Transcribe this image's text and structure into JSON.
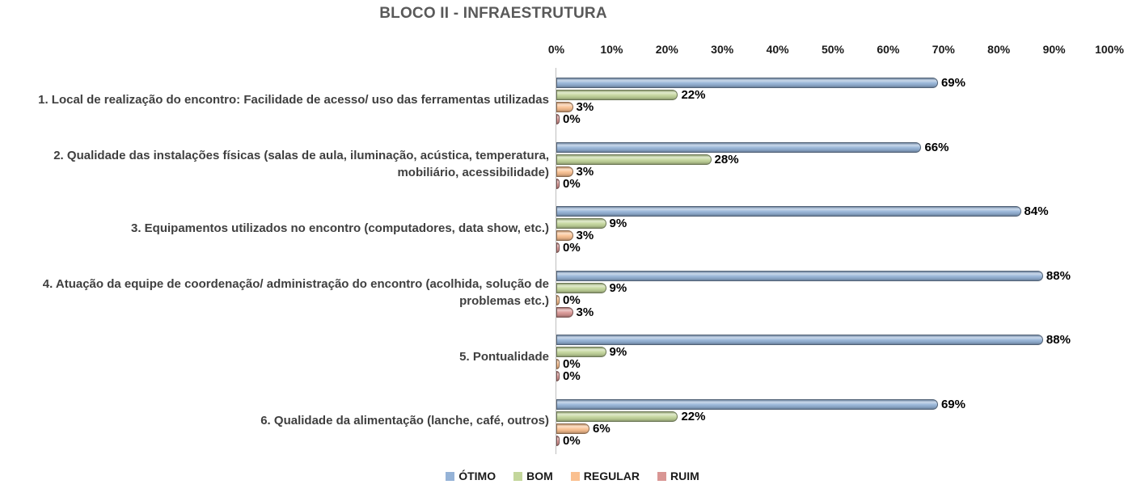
{
  "chart_data": {
    "type": "bar",
    "orientation": "horizontal",
    "title": "BLOCO II - INFRAESTRUTURA",
    "title_color": "#595959",
    "value_suffix": "%",
    "categories": [
      "1. Local de realização do encontro: Facilidade de acesso/ uso das ferramentas utilizadas",
      "2. Qualidade das instalações físicas (salas de aula, iluminação, acústica, temperatura, mobiliário, acessibilidade)",
      "3. Equipamentos utilizados no encontro (computadores, data show, etc.)",
      "4. Atuação da equipe de coordenação/ administração do encontro (acolhida, solução de problemas etc.)",
      "5. Pontualidade",
      "6. Qualidade da alimentação (lanche, café, outros)"
    ],
    "series": [
      {
        "name": "ÓTIMO",
        "color": "#95B3D7",
        "values": [
          69,
          66,
          84,
          88,
          88,
          69
        ]
      },
      {
        "name": "BOM",
        "color": "#C3D69B",
        "values": [
          22,
          28,
          9,
          9,
          9,
          22
        ]
      },
      {
        "name": "REGULAR",
        "color": "#FAC090",
        "values": [
          3,
          3,
          3,
          0,
          0,
          6
        ]
      },
      {
        "name": "RUIM",
        "color": "#D99694",
        "values": [
          0,
          0,
          0,
          3,
          0,
          0
        ]
      }
    ],
    "x_axis": {
      "min": 0,
      "max": 100,
      "tick_labels": [
        "0%",
        "10%",
        "20%",
        "30%",
        "40%",
        "50%",
        "60%",
        "70%",
        "80%",
        "90%",
        "100%"
      ]
    },
    "legend_position": "bottom",
    "grid": false,
    "axis_line_color": "#bfbfbf"
  }
}
